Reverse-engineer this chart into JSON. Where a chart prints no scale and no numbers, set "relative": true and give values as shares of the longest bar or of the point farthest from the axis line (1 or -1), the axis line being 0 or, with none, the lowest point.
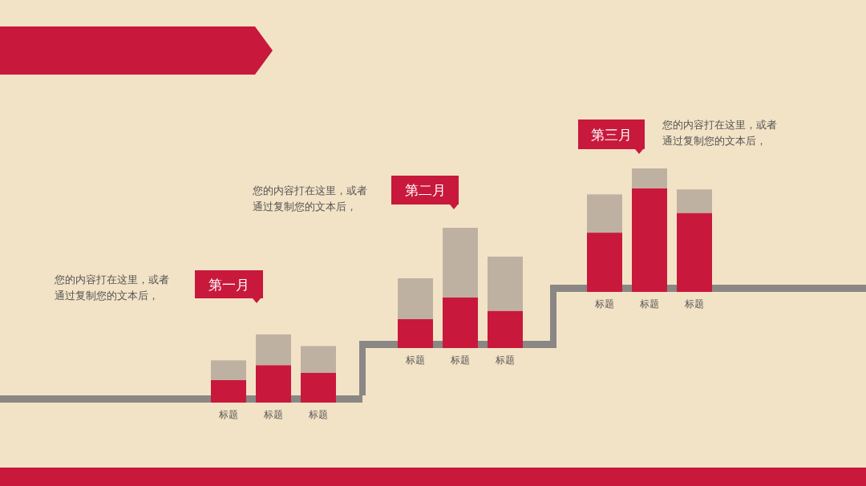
{
  "chart_data": [
    {
      "type": "bar",
      "stacked": true,
      "relative": true,
      "title": "第一月",
      "annotations": [
        "您的内容打在这里，或者通过复制您的文本后，"
      ],
      "categories": [
        "标题",
        "标题",
        "标题"
      ],
      "series": [
        {
          "color": "#c8193c",
          "values": [
            0.33,
            0.55,
            0.44
          ]
        },
        {
          "color": "#bfb1a2",
          "values": [
            0.29,
            0.45,
            0.39
          ]
        }
      ]
    },
    {
      "type": "bar",
      "stacked": true,
      "relative": true,
      "title": "第二月",
      "annotations": [
        "您的内容打在这里，或者通过复制您的文本后，"
      ],
      "categories": [
        "标题",
        "标题",
        "标题"
      ],
      "series": [
        {
          "color": "#c8193c",
          "values": [
            0.24,
            0.42,
            0.31
          ]
        },
        {
          "color": "#bfb1a2",
          "values": [
            0.34,
            0.58,
            0.45
          ]
        }
      ]
    },
    {
      "type": "bar",
      "stacked": true,
      "relative": true,
      "title": "第三月",
      "annotations": [
        "您的内容打在这里，或者通过复制您的文本后，"
      ],
      "categories": [
        "标题",
        "标题",
        "标题"
      ],
      "series": [
        {
          "color": "#c8193c",
          "values": [
            0.48,
            0.84,
            0.64
          ]
        },
        {
          "color": "#bfb1a2",
          "values": [
            0.31,
            0.16,
            0.19
          ]
        }
      ]
    }
  ]
}
